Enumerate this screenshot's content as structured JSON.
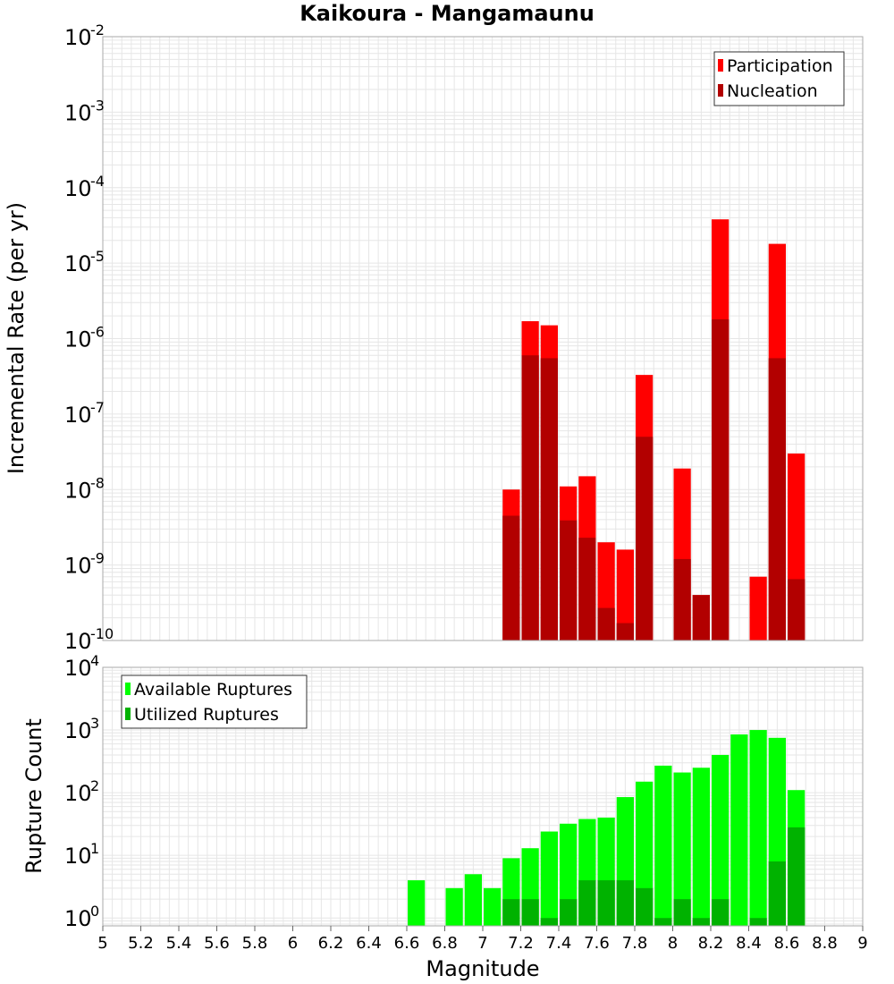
{
  "colors": {
    "participation": "#ff0000",
    "nucleation": "#b20000",
    "available": "#00ff00",
    "utilized": "#00b200",
    "grid": "#e6e6e6",
    "frame": "#aaaaaa"
  },
  "chart_data": [
    {
      "type": "bar",
      "title": "Kaikoura - Mangamaunu",
      "xlabel": "",
      "ylabel": "Incremental Rate (per yr)",
      "yscale": "log",
      "xlim": [
        5,
        9
      ],
      "ylim": [
        1e-10,
        0.01
      ],
      "y_tick_exponents": [
        "-2",
        "-3",
        "-4",
        "-5",
        "-6",
        "-7",
        "-8",
        "-9",
        "-10"
      ],
      "grid": true,
      "legend_position": "top-right",
      "legend": [
        "Participation",
        "Nucleation"
      ],
      "x": [
        7.15,
        7.25,
        7.35,
        7.45,
        7.55,
        7.65,
        7.75,
        7.85,
        8.05,
        8.15,
        8.25,
        8.45,
        8.55,
        8.65
      ],
      "series": [
        {
          "name": "Participation",
          "values": [
            1e-08,
            1.7e-06,
            1.5e-06,
            1.1e-08,
            1.5e-08,
            2e-09,
            1.6e-09,
            3.3e-07,
            1.9e-08,
            4e-10,
            3.8e-05,
            7e-10,
            1.8e-05,
            3e-08
          ]
        },
        {
          "name": "Nucleation",
          "values": [
            4.5e-09,
            6e-07,
            5.5e-07,
            3.9e-09,
            2.3e-09,
            2.7e-10,
            1.7e-10,
            5e-08,
            1.2e-09,
            4e-10,
            1.8e-06,
            null,
            5.5e-07,
            6.5e-10
          ]
        }
      ]
    },
    {
      "type": "bar",
      "title": "",
      "xlabel": "Magnitude",
      "ylabel": "Rupture Count",
      "yscale": "log",
      "xlim": [
        5,
        9
      ],
      "ylim": [
        0.75,
        10000
      ],
      "y_tick_exponents": [
        "4",
        "3",
        "2",
        "1",
        "0"
      ],
      "x_ticks": [
        "5",
        "5.2",
        "5.4",
        "5.6",
        "5.8",
        "6",
        "6.2",
        "6.4",
        "6.6",
        "6.8",
        "7",
        "7.2",
        "7.4",
        "7.6",
        "7.8",
        "8",
        "8.2",
        "8.4",
        "8.6",
        "8.8",
        "9"
      ],
      "grid": true,
      "legend_position": "top-left",
      "legend": [
        "Available Ruptures",
        "Utilized Ruptures"
      ],
      "x": [
        6.65,
        6.85,
        6.95,
        7.05,
        7.15,
        7.25,
        7.35,
        7.45,
        7.55,
        7.65,
        7.75,
        7.85,
        7.95,
        8.05,
        8.15,
        8.25,
        8.35,
        8.45,
        8.55,
        8.65
      ],
      "series": [
        {
          "name": "Available Ruptures",
          "values": [
            4,
            3,
            5,
            3,
            9,
            13,
            24,
            32,
            38,
            40,
            85,
            150,
            270,
            210,
            250,
            400,
            850,
            1000,
            750,
            110
          ]
        },
        {
          "name": "Utilized Ruptures",
          "values": [
            null,
            null,
            null,
            null,
            2,
            2,
            1,
            2,
            4,
            4,
            4,
            3,
            1,
            2,
            1,
            2,
            null,
            1,
            8,
            28
          ]
        }
      ]
    }
  ]
}
